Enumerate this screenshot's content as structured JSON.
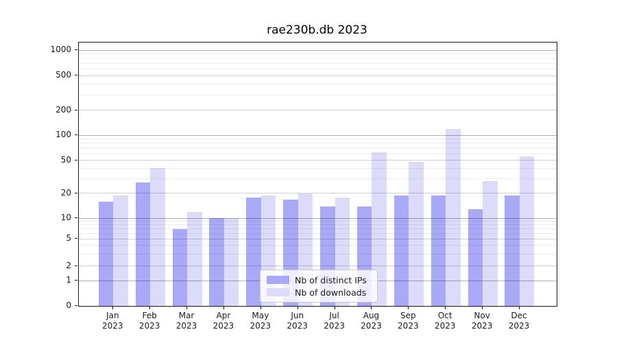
{
  "chart_data": {
    "type": "bar",
    "title": "rae230b.db 2023",
    "categories": [
      "Jan",
      "Feb",
      "Mar",
      "Apr",
      "May",
      "Jun",
      "Jul",
      "Aug",
      "Sep",
      "Oct",
      "Nov",
      "Dec"
    ],
    "year_label": "2023",
    "series": [
      {
        "name": "Nb of distinct IPs",
        "color": "#a9a9f7",
        "values": [
          16,
          27,
          7,
          10,
          18,
          17,
          14,
          14,
          19,
          19,
          13,
          19
        ]
      },
      {
        "name": "Nb of downloads",
        "color": "#dcdcfa",
        "values": [
          19,
          40,
          12,
          10,
          19,
          20,
          18,
          62,
          48,
          120,
          28,
          56
        ]
      }
    ],
    "y_axis": {
      "scale": "symlog",
      "labeled_ticks": [
        0,
        1,
        2,
        5,
        10,
        20,
        50,
        100,
        200,
        500,
        1000
      ],
      "minor_ticks": [
        3,
        4,
        6,
        7,
        8,
        9,
        30,
        40,
        60,
        70,
        80,
        90,
        300,
        400,
        600,
        700,
        800,
        900
      ],
      "range": [
        0,
        1000
      ]
    },
    "legend": {
      "position": "lower center"
    },
    "grid": true
  }
}
